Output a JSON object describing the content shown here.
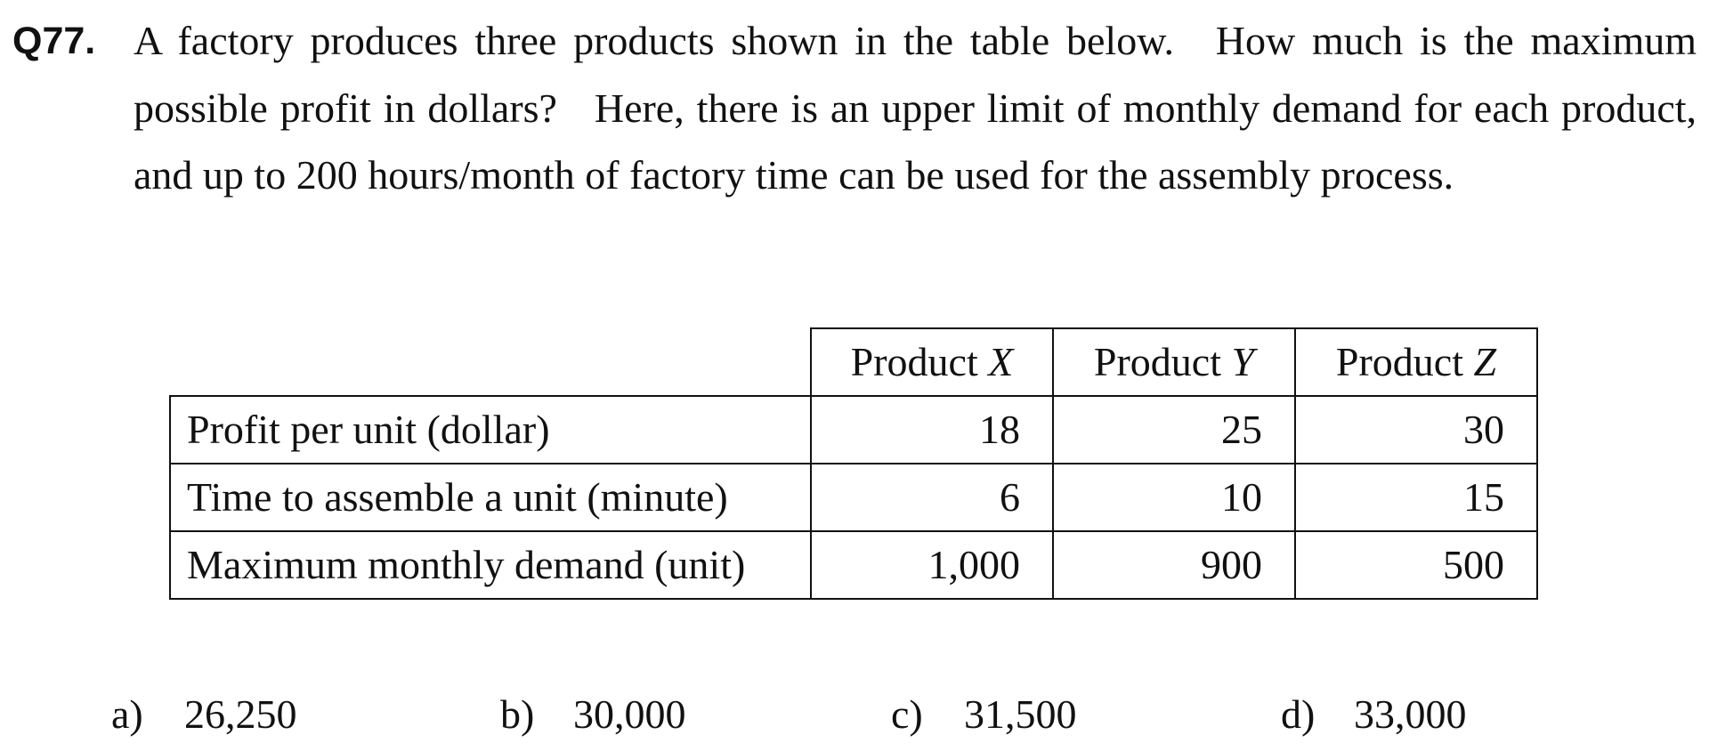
{
  "question": {
    "number": "Q77.",
    "text_part1": "A factory produces three products shown in the table below.",
    "text_part2": "How much is the maximum possible profit in dollars?",
    "text_part3": "Here, there is an upper limit of monthly demand for each product, and up to 200 hours/month of factory time can be used for the assembly process."
  },
  "table": {
    "corner": "",
    "columns": [
      {
        "prefix": "Product ",
        "var": "X"
      },
      {
        "prefix": "Product ",
        "var": "Y"
      },
      {
        "prefix": "Product ",
        "var": "Z"
      }
    ],
    "rows": [
      {
        "label": "Profit per unit (dollar)",
        "values": [
          "18",
          "25",
          "30"
        ]
      },
      {
        "label": "Time to assemble a unit (minute)",
        "values": [
          "6",
          "10",
          "15"
        ]
      },
      {
        "label": "Maximum monthly demand (unit)",
        "values": [
          "1,000",
          "900",
          "500"
        ]
      }
    ]
  },
  "choices": [
    {
      "letter": "a)",
      "value": "26,250"
    },
    {
      "letter": "b)",
      "value": "30,000"
    },
    {
      "letter": "c)",
      "value": "31,500"
    },
    {
      "letter": "d)",
      "value": "33,000"
    }
  ]
}
